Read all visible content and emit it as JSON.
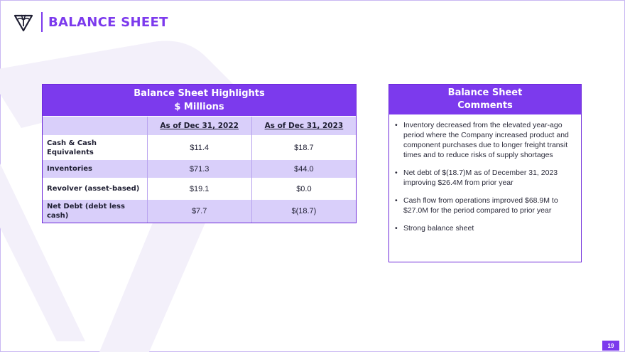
{
  "header": {
    "title": "BALANCE SHEET",
    "logo_icon": "palm-tree-shield-icon"
  },
  "colors": {
    "brand_purple": "#7c3aed",
    "row_band": "#d9cffa"
  },
  "highlights": {
    "title_line1": "Balance Sheet Highlights",
    "title_line2": "$ Millions",
    "columns": [
      "As of Dec 31, 2022",
      "As of Dec 31, 2023"
    ],
    "rows": [
      {
        "label": "Cash & Cash Equivalents",
        "v2022": "$11.4",
        "v2023": "$18.7"
      },
      {
        "label": "Inventories",
        "v2022": "$71.3",
        "v2023": "$44.0"
      },
      {
        "label": "Revolver (asset-based)",
        "v2022": "$19.1",
        "v2023": "$0.0"
      },
      {
        "label": "Net Debt (debt less cash)",
        "v2022": "$7.7",
        "v2023": "$(18.7)"
      }
    ]
  },
  "comments": {
    "title_line1": "Balance Sheet",
    "title_line2": "Comments",
    "items": [
      "Inventory decreased from the elevated year-ago period where the Company increased product and component purchases due to longer freight transit times and to reduce risks of supply shortages",
      "Net debt of $(18.7)M as of December 31, 2023 improving $26.4M from prior year",
      "Cash flow from operations improved $68.9M to $27.0M for the period compared to prior year",
      "Strong balance sheet"
    ]
  },
  "footer": {
    "page_number": "19"
  }
}
